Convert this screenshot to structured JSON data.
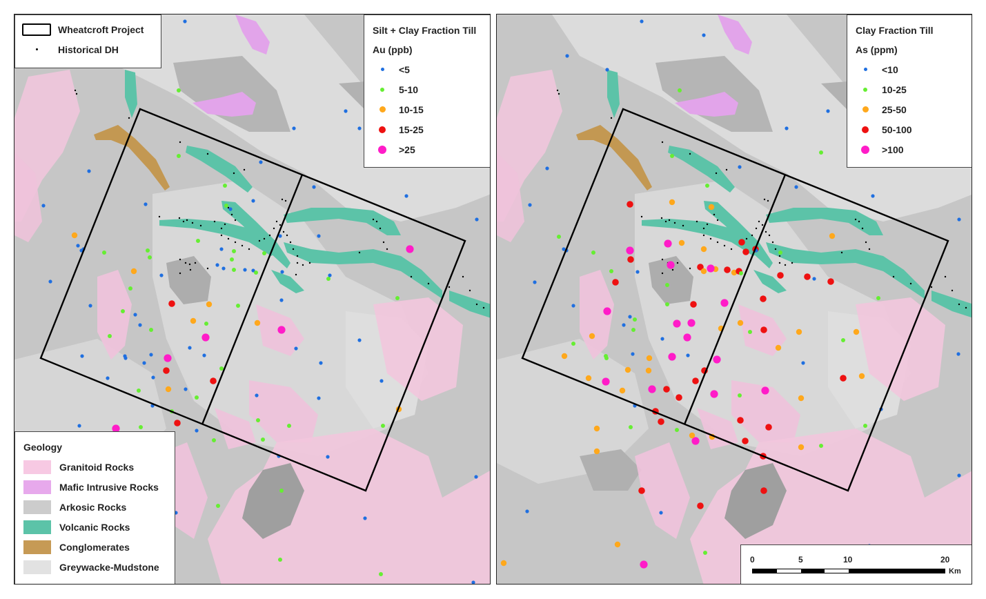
{
  "project_legend": {
    "project_label": "Wheatcroft Project",
    "dh_label": "Historical DH"
  },
  "geology_legend": {
    "title": "Geology",
    "units": [
      {
        "label": "Granitoid Rocks",
        "color": "#f7c9e3"
      },
      {
        "label": "Mafic Intrusive Rocks",
        "color": "#e7a9ec"
      },
      {
        "label": "Arkosic Rocks",
        "color": "#cccccc"
      },
      {
        "label": "Volcanic Rocks",
        "color": "#5cc3a8"
      },
      {
        "label": "Conglomerates",
        "color": "#c69a55"
      },
      {
        "label": "Greywacke-Mudstone",
        "color": "#e2e2e2"
      }
    ]
  },
  "au_legend": {
    "title1": "Silt + Clay Fraction Till",
    "title2": "Au (ppb)",
    "classes": [
      {
        "label": "<5",
        "color": "#1f6fe0",
        "size": 5
      },
      {
        "label": "5-10",
        "color": "#66ee33",
        "size": 6
      },
      {
        "label": "10-15",
        "color": "#ffa81c",
        "size": 9
      },
      {
        "label": "15-25",
        "color": "#ee1111",
        "size": 10
      },
      {
        "label": ">25",
        "color": "#ff1cc8",
        "size": 12
      }
    ]
  },
  "as_legend": {
    "title1": "Clay Fraction Till",
    "title2": "As (ppm)",
    "classes": [
      {
        "label": "<10",
        "color": "#1f6fe0",
        "size": 5
      },
      {
        "label": "10-25",
        "color": "#66ee33",
        "size": 6
      },
      {
        "label": "25-50",
        "color": "#ffa81c",
        "size": 9
      },
      {
        "label": "50-100",
        "color": "#ee1111",
        "size": 10
      },
      {
        "label": ">100",
        "color": "#ff1cc8",
        "size": 12
      }
    ]
  },
  "scale_bar": {
    "ticks": [
      "0",
      "5",
      "10",
      "20"
    ],
    "unit": "Km"
  }
}
